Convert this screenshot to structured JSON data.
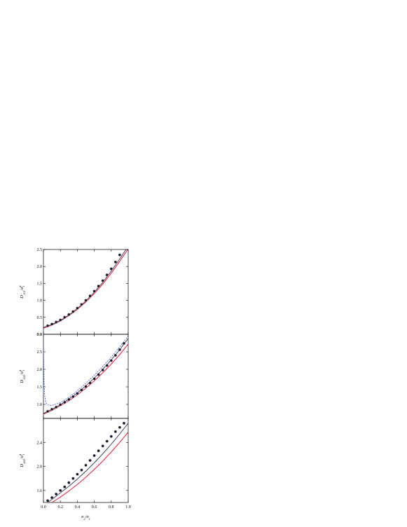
{
  "figure": {
    "xlabel_main": "σ",
    "xlabel_sub1": "2",
    "xlabel_mid": "/σ",
    "xlabel_sub2": "1",
    "xticks": [
      "0.0",
      "0.2",
      "0.4",
      "0.6",
      "0.8",
      "1.0"
    ]
  },
  "colors": {
    "axis": "#000000",
    "red_line": "#e0203a",
    "dark_line": "#1a1a3a",
    "blue_dash": "#3b4fd4",
    "marker_fill": "#1a1428"
  },
  "chart_data": [
    {
      "type": "line",
      "panel": "top",
      "ylabel": {
        "main": "D",
        "sub": "112",
        "rest": "/σ",
        "sup": "4",
        "sub2": "1"
      },
      "xlim": [
        0.0,
        1.0
      ],
      "ylim": [
        0.0,
        2.5
      ],
      "yticks": [
        "0.0",
        "0.5",
        "1.0",
        "1.5",
        "2.0",
        "2.5"
      ],
      "series": [
        {
          "style": "red-solid",
          "x": [
            0.0,
            0.1,
            0.2,
            0.3,
            0.4,
            0.5,
            0.6,
            0.7,
            0.8,
            0.9,
            1.0
          ],
          "y": [
            0.18,
            0.27,
            0.39,
            0.55,
            0.73,
            0.95,
            1.2,
            1.48,
            1.8,
            2.15,
            2.52
          ]
        },
        {
          "style": "dark-solid",
          "x": [
            0.0,
            0.1,
            0.2,
            0.3,
            0.4,
            0.5,
            0.6,
            0.7,
            0.8,
            0.9,
            1.0
          ],
          "y": [
            0.2,
            0.29,
            0.41,
            0.57,
            0.76,
            0.98,
            1.24,
            1.53,
            1.86,
            2.22,
            2.6
          ]
        },
        {
          "style": "markers",
          "x": [
            0.05,
            0.1,
            0.15,
            0.2,
            0.25,
            0.3,
            0.35,
            0.4,
            0.45,
            0.5,
            0.55,
            0.6,
            0.65,
            0.7,
            0.75,
            0.8,
            0.85,
            0.9
          ],
          "y": [
            0.25,
            0.3,
            0.36,
            0.42,
            0.5,
            0.58,
            0.67,
            0.77,
            0.88,
            1.0,
            1.13,
            1.27,
            1.42,
            1.58,
            1.75,
            1.93,
            2.13,
            2.34
          ]
        }
      ]
    },
    {
      "type": "line",
      "panel": "middle",
      "ylabel": {
        "main": "D",
        "sub": "122",
        "rest": "/σ",
        "sup": "4",
        "sub2": "1"
      },
      "xlim": [
        0.0,
        1.0
      ],
      "ylim": [
        0.6,
        3.0
      ],
      "yticks": [
        "3.0",
        "2.5",
        "2.0",
        "1.5",
        "1.0"
      ],
      "series": [
        {
          "style": "red-solid",
          "x": [
            0.0,
            0.1,
            0.2,
            0.3,
            0.4,
            0.5,
            0.6,
            0.7,
            0.8,
            0.9,
            1.0
          ],
          "y": [
            0.72,
            0.83,
            0.96,
            1.1,
            1.27,
            1.46,
            1.67,
            1.9,
            2.15,
            2.42,
            2.72
          ]
        },
        {
          "style": "dark-solid",
          "x": [
            0.0,
            0.1,
            0.2,
            0.3,
            0.4,
            0.5,
            0.6,
            0.7,
            0.8,
            0.9,
            1.0
          ],
          "y": [
            0.74,
            0.86,
            0.99,
            1.15,
            1.33,
            1.53,
            1.75,
            2.0,
            2.27,
            2.56,
            2.88
          ]
        },
        {
          "style": "blue-dash",
          "x": [
            0.0,
            0.003,
            0.008,
            0.015,
            0.025,
            0.04,
            0.06,
            0.1,
            0.2,
            0.3,
            0.4,
            0.5,
            0.6,
            0.7,
            0.8,
            0.9,
            1.0
          ],
          "y": [
            3.0,
            2.3,
            1.6,
            1.25,
            1.08,
            1.0,
            0.98,
            0.97,
            1.05,
            1.2,
            1.39,
            1.6,
            1.83,
            2.08,
            2.35,
            2.64,
            2.95
          ]
        },
        {
          "style": "markers",
          "x": [
            0.05,
            0.1,
            0.15,
            0.2,
            0.25,
            0.3,
            0.35,
            0.4,
            0.45,
            0.5,
            0.55,
            0.6,
            0.65,
            0.7,
            0.75,
            0.8,
            0.85,
            0.9,
            0.95
          ],
          "y": [
            0.8,
            0.86,
            0.92,
            0.99,
            1.06,
            1.14,
            1.22,
            1.31,
            1.41,
            1.51,
            1.61,
            1.73,
            1.85,
            1.98,
            2.11,
            2.25,
            2.4,
            2.56,
            2.74
          ]
        }
      ]
    },
    {
      "type": "line",
      "panel": "bottom",
      "ylabel": {
        "main": "D",
        "sub": "222",
        "rest": "/σ",
        "sup": "4",
        "sub2": "1"
      },
      "xlim": [
        0.0,
        1.0
      ],
      "ylim": [
        1.4,
        2.8
      ],
      "yticks": [
        "1.6",
        "2.0",
        "2.4"
      ],
      "series": [
        {
          "style": "red-solid",
          "x": [
            0.1,
            0.2,
            0.3,
            0.4,
            0.5,
            0.6,
            0.7,
            0.8,
            0.9,
            1.0
          ],
          "y": [
            1.4,
            1.49,
            1.59,
            1.7,
            1.82,
            1.95,
            2.09,
            2.24,
            2.4,
            2.57
          ]
        },
        {
          "style": "dark-solid",
          "x": [
            0.05,
            0.1,
            0.2,
            0.3,
            0.4,
            0.5,
            0.6,
            0.7,
            0.8,
            0.9,
            1.0
          ],
          "y": [
            1.4,
            1.45,
            1.56,
            1.67,
            1.79,
            1.92,
            2.06,
            2.21,
            2.37,
            2.54,
            2.72
          ]
        },
        {
          "style": "markers",
          "x": [
            0.05,
            0.1,
            0.15,
            0.2,
            0.25,
            0.3,
            0.35,
            0.4,
            0.45,
            0.5,
            0.55,
            0.6,
            0.65,
            0.7,
            0.75,
            0.8,
            0.85,
            0.9,
            0.95
          ],
          "y": [
            1.43,
            1.48,
            1.54,
            1.6,
            1.66,
            1.73,
            1.8,
            1.87,
            1.94,
            2.02,
            2.1,
            2.18,
            2.26,
            2.34,
            2.42,
            2.5,
            2.58,
            2.65,
            2.72
          ]
        }
      ]
    }
  ]
}
